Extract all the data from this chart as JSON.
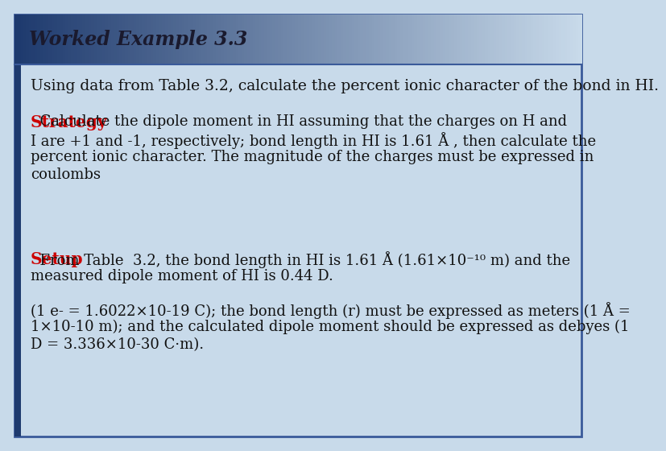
{
  "title": "Worked Example 3.3",
  "bg_color": "#c8daea",
  "header_colors": [
    "#1e3a6e",
    "#1e3a6e",
    "#8aaace",
    "#c8daea"
  ],
  "border_color": "#3a5a9a",
  "left_stripe_color": "#1e3a6e",
  "line1": "Using data from Table 3.2, calculate the percent ionic character of the bond in HI.",
  "strategy_label": "Strategy",
  "strategy_color": "#cc0000",
  "strategy_text": "  Calculate the dipole moment in HI assuming that the charges on H and I are +1 and -1, respectively; bond length in HI is 1.61 Å , then calculate the percent ionic character. The magnitude of the charges must be expressed in coulombs",
  "setup_label": "Setup",
  "setup_color": "#cc0000",
  "setup_text_line1": "  From Table 3. 3.2, the bond length in HI is 1.61 Å (1.61×10⁻¹⁰ m) and the",
  "setup_text_line2": "measured dipole moment of HI is 0.44 D.",
  "note_line1": "(1 e- = 1.6022×10-19 C); the bond length (r) must be expressed as meters (1 Å =",
  "note_line2": "1×10-10 m); and the calculated dipole moment should be expressed as debyes (1",
  "note_line3": "D = 3.336×10-30 C·m).",
  "body_text_color": "#111111",
  "font_size_title": 17,
  "font_size_body": 13.5
}
